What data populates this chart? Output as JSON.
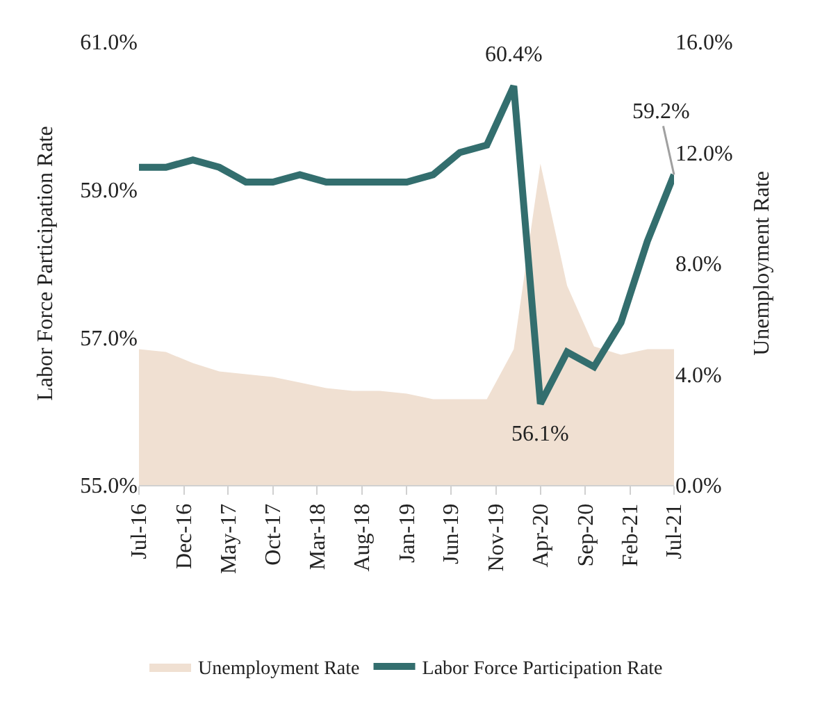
{
  "chart_data": {
    "type": "line",
    "x": [
      "2016-07",
      "2016-10",
      "2017-01",
      "2017-04",
      "2017-07",
      "2017-10",
      "2018-01",
      "2018-04",
      "2018-07",
      "2018-10",
      "2019-01",
      "2019-04",
      "2019-07",
      "2019-10",
      "2020-01",
      "2020-04",
      "2020-07",
      "2020-10",
      "2021-01",
      "2021-04",
      "2021-07"
    ],
    "series": [
      {
        "name": "Unemployment Rate",
        "type": "area",
        "axis": "y2",
        "color": "#f0e0d2",
        "values": [
          4.9,
          4.8,
          4.4,
          4.1,
          4.0,
          3.9,
          3.7,
          3.5,
          3.4,
          3.4,
          3.3,
          3.1,
          3.1,
          3.1,
          4.9,
          11.6,
          7.2,
          5.0,
          4.7,
          4.9,
          4.9
        ]
      },
      {
        "name": "Labor Force Participation Rate",
        "color": "#336e6e",
        "values": [
          59.3,
          59.3,
          59.4,
          59.3,
          59.1,
          59.1,
          59.2,
          59.1,
          59.1,
          59.1,
          59.1,
          59.2,
          59.5,
          59.6,
          60.4,
          56.1,
          56.8,
          56.6,
          57.2,
          58.3,
          59.2
        ]
      }
    ],
    "ylabel": "Labor Force Participation Rate",
    "y2label": "Unemployment Rate",
    "xlim": [
      "2016-07",
      "2021-07"
    ],
    "xticks": [
      {
        "value": "2016-07",
        "label": "Jul-16"
      },
      {
        "value": "2016-12",
        "label": "Dec-16"
      },
      {
        "value": "2017-05",
        "label": "May-17"
      },
      {
        "value": "2017-10",
        "label": "Oct-17"
      },
      {
        "value": "2018-03",
        "label": "Mar-18"
      },
      {
        "value": "2018-08",
        "label": "Aug-18"
      },
      {
        "value": "2019-01",
        "label": "Jan-19"
      },
      {
        "value": "2019-06",
        "label": "Jun-19"
      },
      {
        "value": "2019-11",
        "label": "Nov-19"
      },
      {
        "value": "2020-04",
        "label": "Apr-20"
      },
      {
        "value": "2020-09",
        "label": "Sep-20"
      },
      {
        "value": "2021-02",
        "label": "Feb-21"
      },
      {
        "value": "2021-07",
        "label": "Jul-21"
      }
    ],
    "ylim": [
      55,
      61
    ],
    "yticks": [
      {
        "value": 55,
        "label": "55.0%"
      },
      {
        "value": 57,
        "label": "57.0%"
      },
      {
        "value": 59,
        "label": "59.0%"
      },
      {
        "value": 61,
        "label": "61.0%"
      }
    ],
    "y2lim": [
      0,
      16
    ],
    "y2ticks": [
      {
        "value": 0,
        "label": "0.0%"
      },
      {
        "value": 4,
        "label": "4.0%"
      },
      {
        "value": 8,
        "label": "8.0%"
      },
      {
        "value": 12,
        "label": "12.0%"
      },
      {
        "value": 16,
        "label": "16.0%"
      }
    ],
    "annotations": [
      {
        "text": "60.4%",
        "x": "2020-01",
        "y": 60.4
      },
      {
        "text": "56.1%",
        "x": "2020-04",
        "y": 56.1
      },
      {
        "text": "59.2%",
        "x": "2021-07",
        "y": 59.2
      }
    ],
    "grid": false,
    "legend": "bottom",
    "marker": "none",
    "line_style": "solid"
  }
}
